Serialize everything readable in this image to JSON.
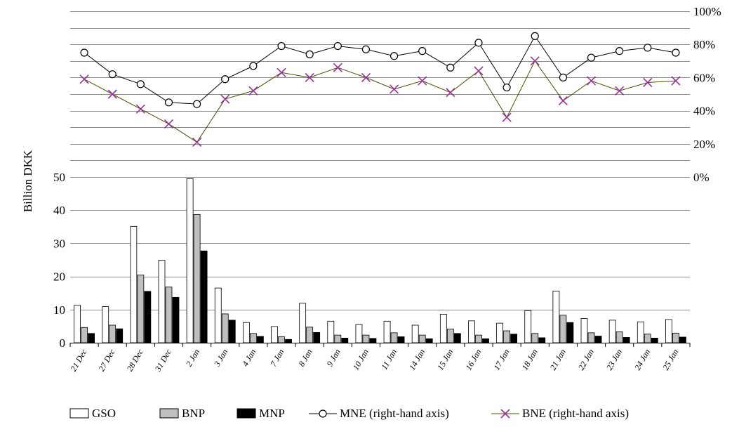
{
  "chart_data": {
    "type": "bar",
    "ylabel": "Billion DKK",
    "ylim": [
      0,
      50
    ],
    "yticks": [
      0,
      10,
      20,
      30,
      40,
      50
    ],
    "y2ticks": [
      "0%",
      "20%",
      "40%",
      "60%",
      "80%",
      "100%"
    ],
    "y2lim": [
      0,
      100
    ],
    "categories": [
      "21 Dec",
      "27 Dec",
      "28 Dec",
      "31 Dec",
      "2 Jan",
      "3 Jan",
      "4 Jan",
      "7 Jan",
      "8 Jan",
      "9 Jan",
      "10 Jan",
      "11 Jan",
      "14 Jan",
      "15 Jan",
      "16 Jan",
      "17 Jan",
      "18 Jan",
      "21 Jan",
      "22 Jan",
      "23 Jan",
      "24 Jan",
      "25 Jan"
    ],
    "series": [
      {
        "name": "GSO",
        "kind": "bar",
        "axis": "left",
        "color": "#ffffff",
        "values": [
          11.3,
          10.9,
          35.1,
          24.9,
          49.5,
          16.5,
          6.1,
          4.9,
          11.9,
          6.5,
          5.5,
          6.5,
          5.3,
          8.6,
          6.6,
          5.9,
          9.7,
          15.6,
          7.3,
          6.8,
          6.3,
          7.0
        ]
      },
      {
        "name": "BNP",
        "kind": "bar",
        "axis": "left",
        "color": "#bfbfbf",
        "values": [
          4.6,
          5.3,
          20.4,
          16.8,
          38.7,
          8.7,
          2.8,
          1.8,
          4.7,
          2.3,
          2.3,
          3.0,
          2.3,
          4.1,
          2.3,
          3.6,
          2.8,
          8.3,
          3.0,
          3.3,
          2.6,
          2.9
        ]
      },
      {
        "name": "MNP",
        "kind": "bar",
        "axis": "left",
        "color": "#000000",
        "values": [
          2.8,
          4.2,
          15.5,
          13.7,
          27.7,
          6.8,
          1.9,
          1.0,
          3.1,
          1.4,
          1.3,
          1.8,
          1.2,
          2.8,
          1.2,
          2.6,
          1.5,
          6.1,
          2.0,
          1.6,
          1.4,
          1.7
        ]
      },
      {
        "name": "MNE (right-hand axis)",
        "kind": "line",
        "marker": "circle",
        "axis": "right",
        "color": "#000000",
        "values": [
          75,
          62,
          56,
          45,
          44,
          59,
          67,
          79,
          74,
          79,
          77,
          73,
          76,
          66,
          81,
          54,
          85,
          60,
          72,
          76,
          78,
          75
        ]
      },
      {
        "name": "BNE (right-hand axis)",
        "kind": "line",
        "marker": "x",
        "axis": "right",
        "color": "#993399",
        "values": [
          59,
          50,
          41,
          32,
          21,
          47,
          52,
          63,
          60,
          66,
          60,
          53,
          58,
          51,
          64,
          36,
          70,
          46,
          58,
          52,
          57,
          58
        ]
      }
    ],
    "grid": true,
    "legend": "bottom"
  }
}
